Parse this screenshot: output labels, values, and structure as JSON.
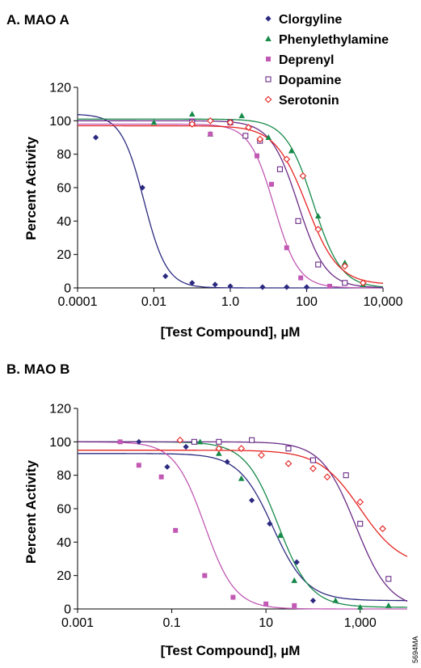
{
  "figure_code": "5694MA",
  "colors": {
    "Clorgyline": "#2b2a80",
    "Phenylethylamine": "#178a4a",
    "Deprenyl": "#c159b4",
    "Dopamine": "#6a2b86",
    "Serotonin": "#e52421"
  },
  "chart_data": [
    {
      "type": "scatter",
      "title": "A. MAO A",
      "xlabel": "[Test Compound], µM",
      "ylabel": "Percent Activity",
      "xscale": "log",
      "xlim": [
        0.0001,
        10000
      ],
      "ylim": [
        0,
        120
      ],
      "xticks": [
        0.0001,
        0.01,
        1,
        100,
        10000
      ],
      "xtick_labels": [
        "0.0001",
        "0.01",
        "1.0",
        "100",
        "10,000"
      ],
      "yticks": [
        0,
        20,
        40,
        60,
        80,
        100,
        120
      ],
      "ytick_labels": [
        "0",
        "20",
        "40",
        "60",
        "80",
        "100",
        "120"
      ],
      "grid": false,
      "legend": {
        "position": "top-right",
        "entries": [
          {
            "label": "Clorgyline",
            "marker": "diamond"
          },
          {
            "label": "Phenylethylamine",
            "marker": "triangle"
          },
          {
            "label": "Deprenyl",
            "marker": "square"
          },
          {
            "label": "Dopamine",
            "marker": "open-square"
          },
          {
            "label": "Serotonin",
            "marker": "open-diamond"
          }
        ]
      },
      "series": [
        {
          "name": "Clorgyline",
          "marker": "diamond",
          "x": [
            0.0003,
            0.005,
            0.02,
            0.1,
            0.4,
            1.0,
            7,
            30,
            100
          ],
          "y": [
            90,
            60,
            7,
            3,
            2,
            1,
            0.5,
            0.5,
            0.5
          ],
          "fit": {
            "top": 104,
            "bottom": 0,
            "ic50": 0.0055,
            "hill": 1.45
          }
        },
        {
          "name": "Phenylethylamine",
          "marker": "triangle",
          "x": [
            0.01,
            0.1,
            0.3,
            2,
            10,
            40,
            200,
            1000,
            3000
          ],
          "y": [
            99,
            104,
            92,
            103,
            90,
            82,
            43,
            15,
            2
          ],
          "fit": {
            "top": 101,
            "bottom": 0,
            "ic50": 150,
            "hill": 1.2
          }
        },
        {
          "name": "Deprenyl",
          "marker": "square",
          "x": [
            0.1,
            0.3,
            5,
            12,
            30,
            70,
            400
          ],
          "y": [
            100,
            92,
            79,
            62,
            24,
            6,
            1
          ],
          "fit": {
            "top": 98,
            "bottom": 0,
            "ic50": 14,
            "hill": 1.35
          }
        },
        {
          "name": "Dopamine",
          "marker": "open-square",
          "x": [
            0.1,
            1.0,
            2.5,
            6,
            20,
            60,
            200,
            1000
          ],
          "y": [
            99,
            99,
            91,
            88,
            71,
            40,
            14,
            3
          ],
          "fit": {
            "top": 100,
            "bottom": 0,
            "ic50": 60,
            "hill": 1.2
          }
        },
        {
          "name": "Serotonin",
          "marker": "open-diamond",
          "x": [
            0.1,
            0.3,
            1.0,
            3,
            6,
            30,
            80,
            200,
            1000,
            3000
          ],
          "y": [
            98,
            100,
            99,
            96,
            89,
            77,
            67,
            35,
            13,
            3
          ],
          "fit": {
            "top": 97,
            "bottom": 2,
            "ic50": 100,
            "hill": 1.05
          }
        }
      ]
    },
    {
      "type": "scatter",
      "title": "B. MAO B",
      "xlabel": "[Test Compound], µM",
      "ylabel": "Percent Activity",
      "xscale": "log",
      "xlim": [
        0.001,
        10000
      ],
      "ylim": [
        0,
        120
      ],
      "xticks": [
        0.001,
        0.1,
        10,
        1000
      ],
      "xtick_labels": [
        "0.001",
        "0.1",
        "10",
        "1,000"
      ],
      "yticks": [
        0,
        20,
        40,
        60,
        80,
        100,
        120
      ],
      "ytick_labels": [
        "0",
        "20",
        "40",
        "60",
        "80",
        "100",
        "120"
      ],
      "grid": false,
      "series": [
        {
          "name": "Clorgyline",
          "marker": "diamond",
          "x": [
            0.02,
            0.08,
            0.2,
            1.5,
            5,
            12,
            45,
            100
          ],
          "y": [
            100,
            85,
            97,
            88,
            65,
            51,
            28,
            5
          ],
          "fit": {
            "top": 93,
            "bottom": 5,
            "ic50": 14,
            "hill": 1.2
          }
        },
        {
          "name": "Phenylethylamine",
          "marker": "triangle",
          "x": [
            0.4,
            1.0,
            3,
            20,
            40,
            300,
            1000,
            4000
          ],
          "y": [
            100,
            93,
            78,
            44,
            17,
            5,
            1,
            2
          ],
          "fit": {
            "top": 100,
            "bottom": 1,
            "ic50": 18,
            "hill": 1.25
          }
        },
        {
          "name": "Deprenyl",
          "marker": "square",
          "x": [
            0.008,
            0.02,
            0.06,
            0.12,
            0.5,
            2,
            10,
            40
          ],
          "y": [
            100,
            86,
            79,
            47,
            20,
            7,
            3,
            2
          ],
          "fit": {
            "top": 100,
            "bottom": 0,
            "ic50": 0.5,
            "hill": 1.35
          }
        },
        {
          "name": "Dopamine",
          "marker": "open-square",
          "x": [
            0.3,
            1.0,
            5,
            30,
            100,
            500,
            1000,
            4000
          ],
          "y": [
            100,
            100,
            101,
            96,
            89,
            80,
            51,
            18
          ],
          "fit": {
            "top": 100,
            "bottom": 0,
            "ic50": 800,
            "hill": 1.2
          }
        },
        {
          "name": "Serotonin",
          "marker": "open-diamond",
          "x": [
            0.15,
            1.0,
            3,
            8,
            30,
            100,
            200,
            1000,
            3000
          ],
          "y": [
            101,
            96,
            96,
            92,
            87,
            84,
            79,
            64,
            48
          ],
          "fit": {
            "top": 95,
            "bottom": 25,
            "ic50": 1000,
            "hill": 1.0
          }
        }
      ]
    }
  ]
}
